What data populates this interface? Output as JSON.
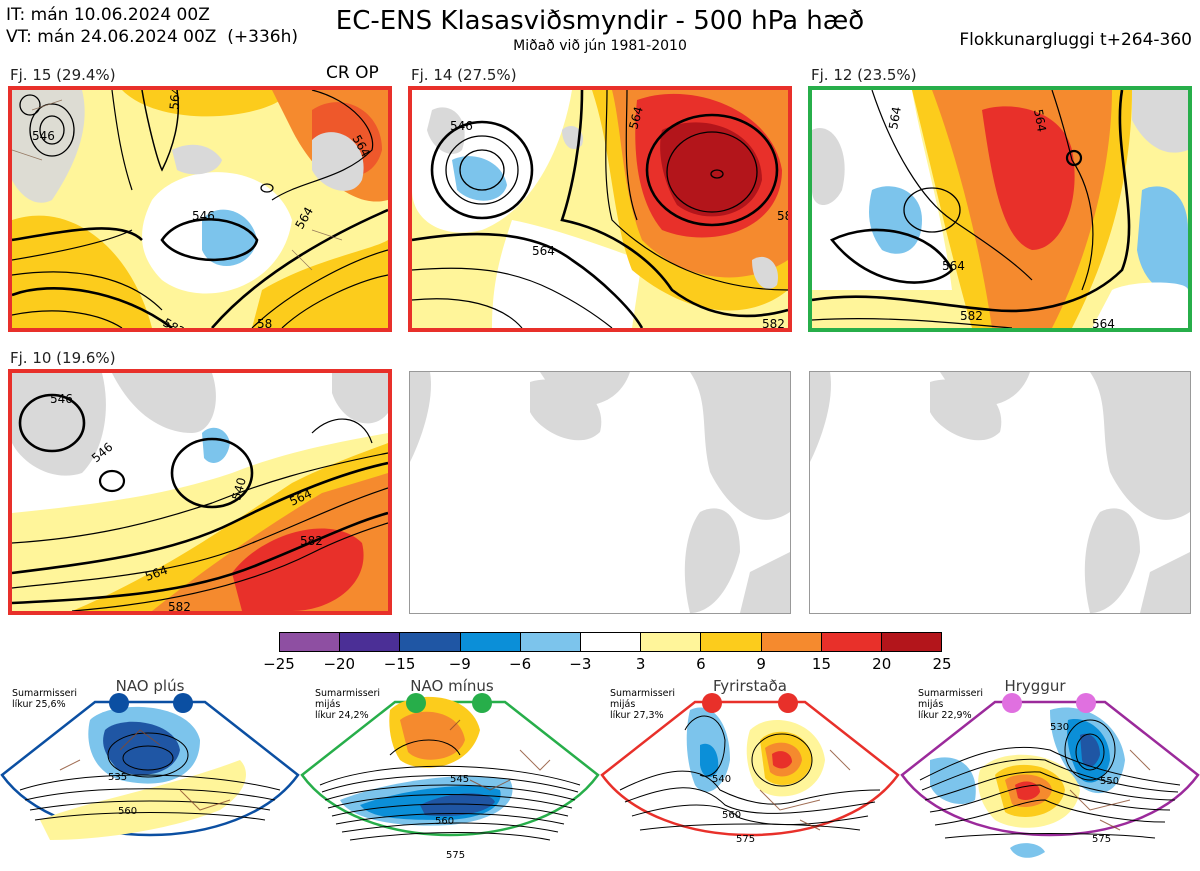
{
  "header": {
    "it": "IT: mán 10.06.2024 00Z",
    "vt": "VT: mán 24.06.2024 00Z  (+336h)",
    "title": "EC-ENS Klasasviðsmyndir - 500 hPa hæð",
    "subtitle": "Miðað við jún 1981-2010",
    "window": "Flokkunargluggi t+264-360"
  },
  "panels": [
    {
      "label": "Fj. 15 (29.4%)",
      "border": "#e8302a",
      "extra": "CR OP",
      "contours": [
        "546",
        "564",
        "564",
        "546",
        "564",
        "582",
        "58"
      ]
    },
    {
      "label": "Fj. 14 (27.5%)",
      "border": "#e8302a",
      "contours": [
        "546",
        "564",
        "564",
        "582",
        "582"
      ]
    },
    {
      "label": "Fj. 12 (23.5%)",
      "border": "#27ae4a",
      "contours": [
        "564",
        "564",
        "564",
        "582",
        "564"
      ]
    },
    {
      "label": "Fj. 10 (19.6%)",
      "border": "#e8302a",
      "contours": [
        "546",
        "546",
        "540",
        "564",
        "582",
        "564",
        "582"
      ]
    }
  ],
  "legend": {
    "ticks": [
      "−25",
      "−20",
      "−15",
      "−9",
      "−6",
      "−3",
      "3",
      "6",
      "9",
      "15",
      "20",
      "25"
    ],
    "colors": [
      "#8e4fa2",
      "#4b2f96",
      "#1f56a4",
      "#0b8fd8",
      "#7cc4ec",
      "#ffffff",
      "#fff59a",
      "#fccc1c",
      "#f58a2e",
      "#e8302a",
      "#b3151b"
    ]
  },
  "regimes": [
    {
      "title": "NAO plús",
      "note": "Sumarmisseri\nlíkur 25,6%",
      "color": "#0b4fa2",
      "labels": [
        "535",
        "560"
      ]
    },
    {
      "title": "NAO mínus",
      "note": "Sumarmisseri\nmijás\nlíkur 24,2%",
      "color": "#27ae4a",
      "labels": [
        "545",
        "560",
        "575"
      ]
    },
    {
      "title": "Fyrirstaða",
      "note": "Sumarmisseri\nmijás\nlíkur 27,3%",
      "color": "#e8302a",
      "labels": [
        "540",
        "560",
        "575"
      ]
    },
    {
      "title": "Hryggur",
      "note": "Sumarmisseri\nmijás\nlíkur 22,9%",
      "color": "#9b2a9b",
      "labels": [
        "530",
        "550",
        "575"
      ]
    }
  ],
  "colors": {
    "land": "#d9d9d9",
    "coast": "#8a6a52",
    "contour": "#000000"
  }
}
